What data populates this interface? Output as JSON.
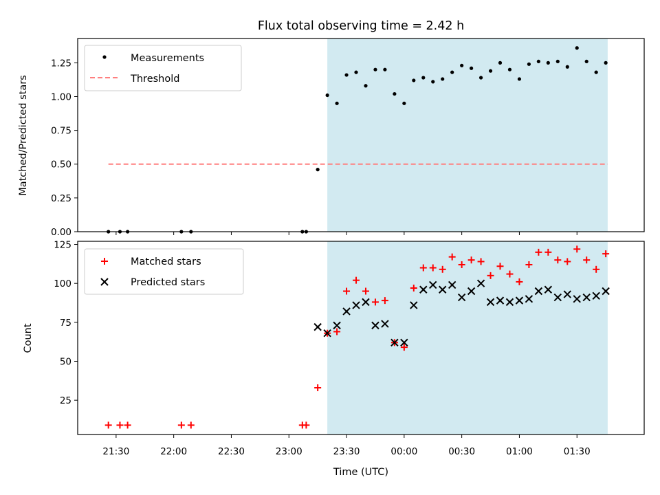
{
  "chart_data": [
    {
      "type": "scatter",
      "title": "Flux total observing time = 2.42 h",
      "xlabel": "",
      "ylabel": "Matched/Predicted stars",
      "ylim": [
        0,
        1.43
      ],
      "yticks": [
        "0.00",
        "0.25",
        "0.50",
        "0.75",
        "1.00",
        "1.25"
      ],
      "ytick_values": [
        0,
        0.25,
        0.5,
        0.75,
        1.0,
        1.25
      ],
      "legend": {
        "placement": "top-left",
        "entries": [
          "Measurements",
          "Threshold"
        ]
      },
      "colors": {
        "measurements": "#000000",
        "threshold": "#ff7f7f",
        "shade": "#add8e6"
      },
      "threshold": {
        "value": 0.5,
        "x_start": "21:26",
        "x_end": "01:46"
      },
      "shaded_span": {
        "start": "23:20",
        "end": "01:46"
      },
      "series": [
        {
          "name": "Measurements",
          "x": [
            "21:26",
            "21:32",
            "21:36",
            "22:04",
            "22:09",
            "23:07",
            "23:09",
            "23:15",
            "23:20",
            "23:25",
            "23:30",
            "23:35",
            "23:40",
            "23:45",
            "23:50",
            "23:55",
            "00:00",
            "00:05",
            "00:10",
            "00:15",
            "00:20",
            "00:25",
            "00:30",
            "00:35",
            "00:40",
            "00:45",
            "00:50",
            "00:55",
            "01:00",
            "01:05",
            "01:10",
            "01:15",
            "01:20",
            "01:25",
            "01:30",
            "01:35",
            "01:40",
            "01:45"
          ],
          "values": [
            0.0,
            0.0,
            0.0,
            0.0,
            0.0,
            0.0,
            0.0,
            0.46,
            1.01,
            0.95,
            1.16,
            1.18,
            1.08,
            1.2,
            1.2,
            1.02,
            0.95,
            1.12,
            1.14,
            1.11,
            1.13,
            1.18,
            1.23,
            1.21,
            1.14,
            1.19,
            1.25,
            1.2,
            1.13,
            1.24,
            1.26,
            1.25,
            1.26,
            1.22,
            1.36,
            1.26,
            1.18,
            1.25
          ]
        }
      ]
    },
    {
      "type": "scatter",
      "title": "",
      "xlabel": "Time (UTC)",
      "ylabel": "Count",
      "ylim": [
        3,
        127
      ],
      "yticks": [
        "25",
        "50",
        "75",
        "100",
        "125"
      ],
      "ytick_values": [
        25,
        50,
        75,
        100,
        125
      ],
      "categories": [
        "21:30",
        "22:00",
        "22:30",
        "23:00",
        "23:30",
        "00:00",
        "00:30",
        "01:00",
        "01:30"
      ],
      "xlim": [
        "21:10",
        "02:05"
      ],
      "legend": {
        "placement": "top-left",
        "entries": [
          "Matched stars",
          "Predicted stars"
        ]
      },
      "colors": {
        "matched": "#ff0000",
        "predicted": "#000000",
        "shade": "#add8e6"
      },
      "shaded_span": {
        "start": "23:20",
        "end": "01:46"
      },
      "series": [
        {
          "name": "Matched stars",
          "x": [
            "21:26",
            "21:32",
            "21:36",
            "22:04",
            "22:09",
            "23:07",
            "23:09",
            "23:15",
            "23:20",
            "23:25",
            "23:30",
            "23:35",
            "23:40",
            "23:45",
            "23:50",
            "23:55",
            "00:00",
            "00:05",
            "00:10",
            "00:15",
            "00:20",
            "00:25",
            "00:30",
            "00:35",
            "00:40",
            "00:45",
            "00:50",
            "00:55",
            "01:00",
            "01:05",
            "01:10",
            "01:15",
            "01:20",
            "01:25",
            "01:30",
            "01:35",
            "01:40",
            "01:45"
          ],
          "values": [
            9,
            9,
            9,
            9,
            9,
            9,
            9,
            33,
            68,
            69,
            95,
            102,
            95,
            88,
            89,
            62,
            59,
            97,
            110,
            110,
            109,
            117,
            112,
            115,
            114,
            105,
            111,
            106,
            101,
            112,
            120,
            120,
            115,
            114,
            122,
            115,
            109,
            119
          ]
        },
        {
          "name": "Predicted stars",
          "x": [
            "23:15",
            "23:20",
            "23:25",
            "23:30",
            "23:35",
            "23:40",
            "23:45",
            "23:50",
            "23:55",
            "00:00",
            "00:05",
            "00:10",
            "00:15",
            "00:20",
            "00:25",
            "00:30",
            "00:35",
            "00:40",
            "00:45",
            "00:50",
            "00:55",
            "01:00",
            "01:05",
            "01:10",
            "01:15",
            "01:20",
            "01:25",
            "01:30",
            "01:35",
            "01:40",
            "01:45"
          ],
          "values": [
            72,
            68,
            73,
            82,
            86,
            88,
            73,
            74,
            62,
            62,
            86,
            96,
            99,
            96,
            99,
            91,
            95,
            100,
            88,
            89,
            88,
            89,
            90,
            95,
            96,
            91,
            93,
            90,
            91,
            92,
            95
          ]
        }
      ]
    }
  ]
}
